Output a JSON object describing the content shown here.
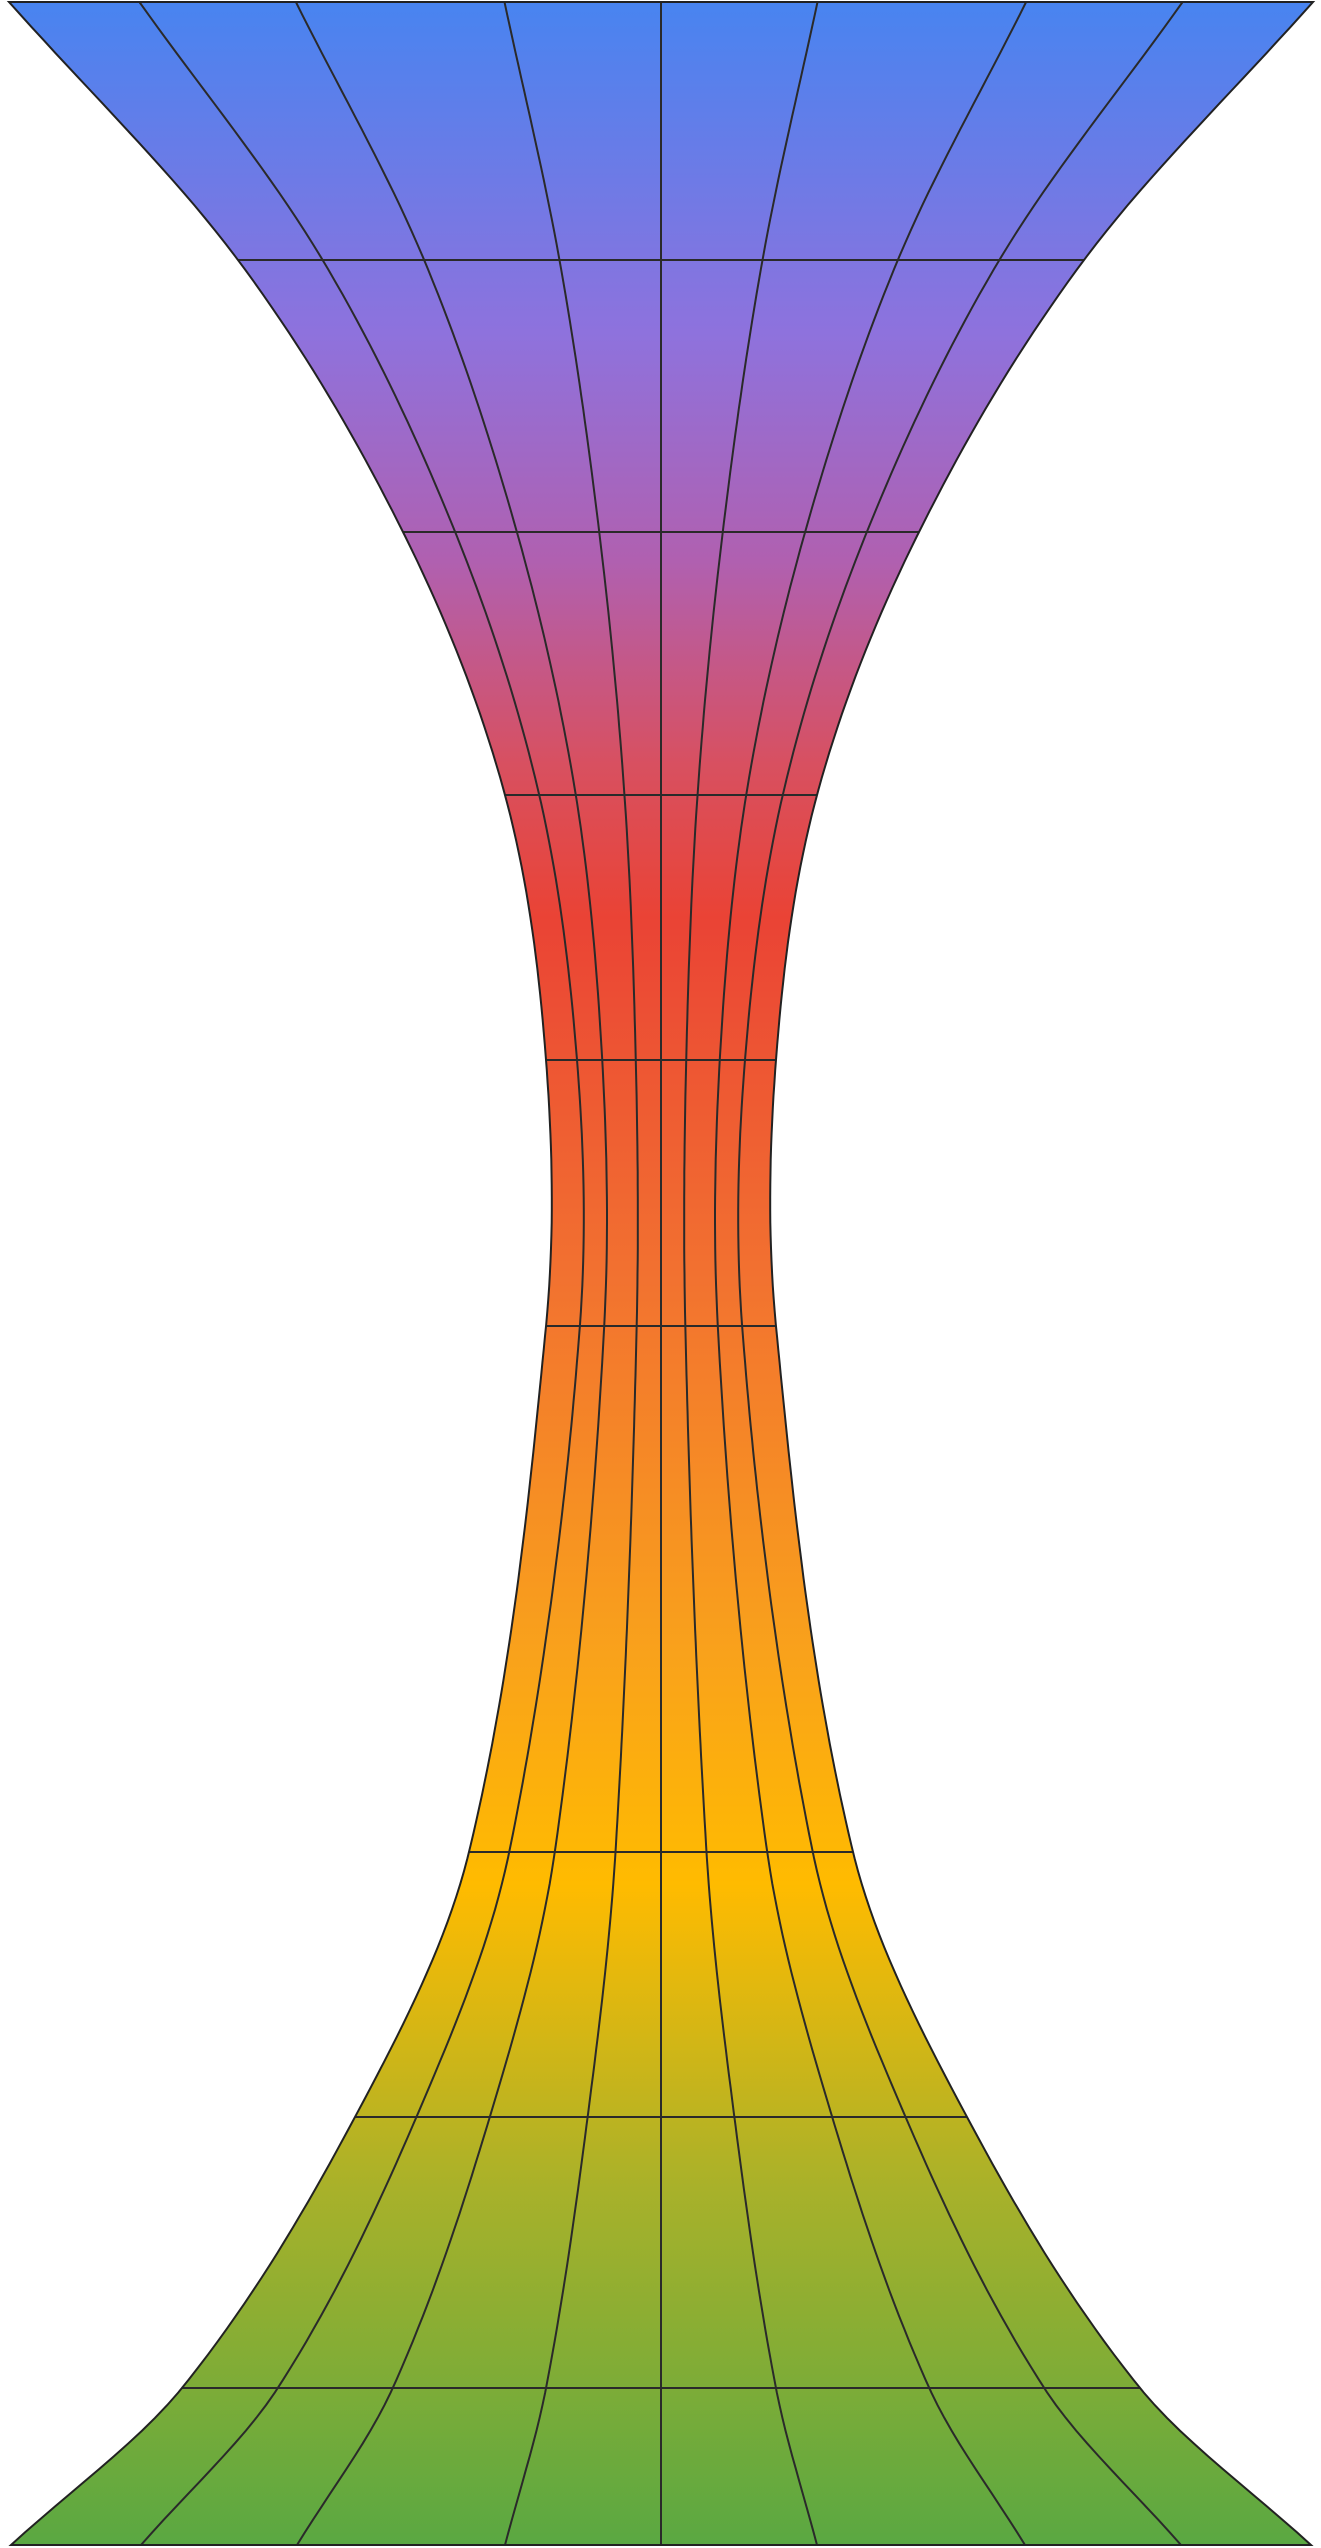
{
  "figure": {
    "gradient_stops": [
      {
        "offset": 0.0,
        "color": "#4884F0"
      },
      {
        "offset": 0.13,
        "color": "#8E72DD"
      },
      {
        "offset": 0.22,
        "color": "#B060B0"
      },
      {
        "offset": 0.3,
        "color": "#D85060"
      },
      {
        "offset": 0.36,
        "color": "#EA4335"
      },
      {
        "offset": 0.5,
        "color": "#F27130"
      },
      {
        "offset": 0.65,
        "color": "#F9A21B"
      },
      {
        "offset": 0.74,
        "color": "#FFBB00"
      },
      {
        "offset": 0.86,
        "color": "#A8B12A"
      },
      {
        "offset": 1.0,
        "color": "#5AA842"
      }
    ],
    "outline_color": "#222222",
    "grid_color": "#2a2a2a"
  }
}
